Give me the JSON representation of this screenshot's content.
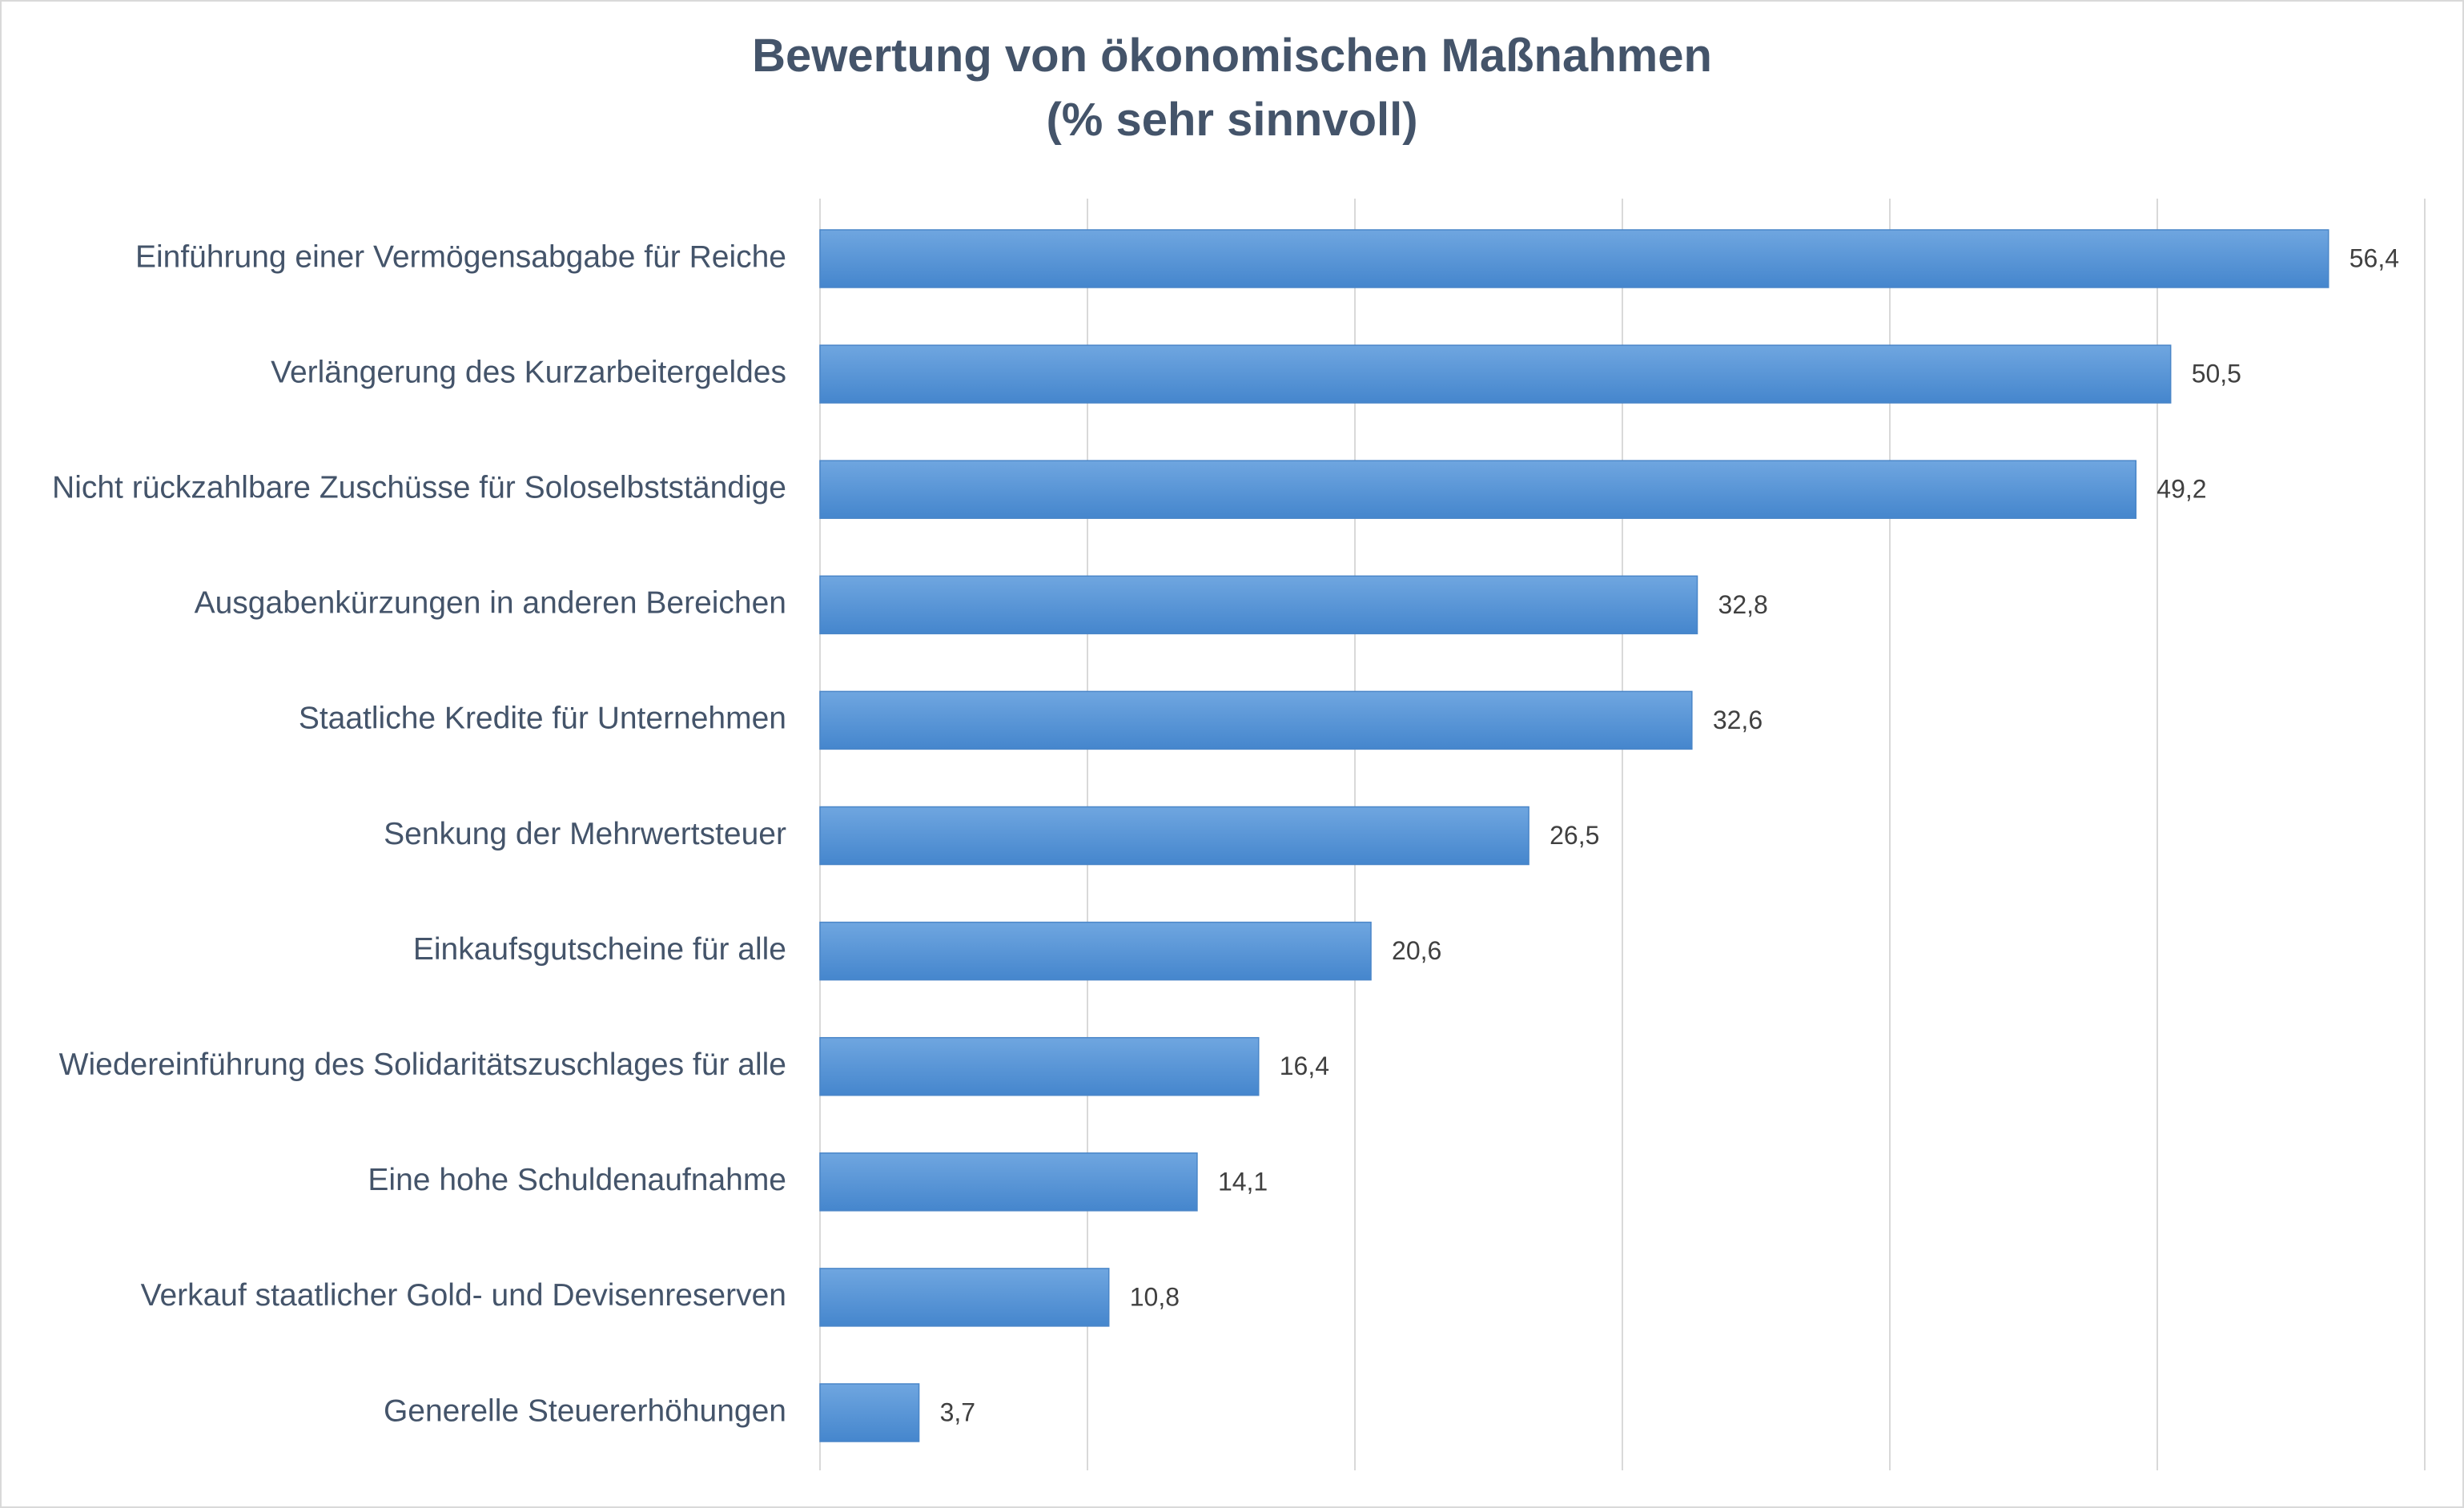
{
  "chart_data": {
    "type": "bar",
    "orientation": "horizontal",
    "title": "Bewertung von ökonomischen Maßnahmen",
    "subtitle": "(% sehr sinnvoll)",
    "xlabel": "",
    "ylabel": "",
    "xlim": [
      0,
      60
    ],
    "grid": true,
    "legend": "none",
    "categories": [
      "Einführung einer Vermögensabgabe für Reiche",
      "Verlängerung des Kurzarbeitergeldes",
      "Nicht rückzahlbare Zuschüsse für Soloselbstständige",
      "Ausgabenkürzungen in anderen Bereichen",
      "Staatliche Kredite für Unternehmen",
      "Senkung der Mehrwertsteuer",
      "Einkaufsgutscheine für alle",
      "Wiedereinführung des Solidaritätszuschlages für alle",
      "Eine hohe Schuldenaufnahme",
      "Verkauf staatlicher Gold- und Devisenreserven",
      "Generelle Steuererhöhungen"
    ],
    "values": [
      56.4,
      50.5,
      49.2,
      32.8,
      32.6,
      26.5,
      20.6,
      16.4,
      14.1,
      10.8,
      3.7
    ],
    "value_labels": [
      "56,4",
      "50,5",
      "49,2",
      "32,8",
      "32,6",
      "26,5",
      "20,6",
      "16,4",
      "14,1",
      "10,8",
      "3,7"
    ],
    "colors": {
      "bar_top": "#6fa6e0",
      "bar_bottom": "#4586cd",
      "bar_edge": "#4a86c8",
      "text": "#44546a",
      "label_text": "#404040",
      "grid": "#d9d9d9"
    }
  }
}
